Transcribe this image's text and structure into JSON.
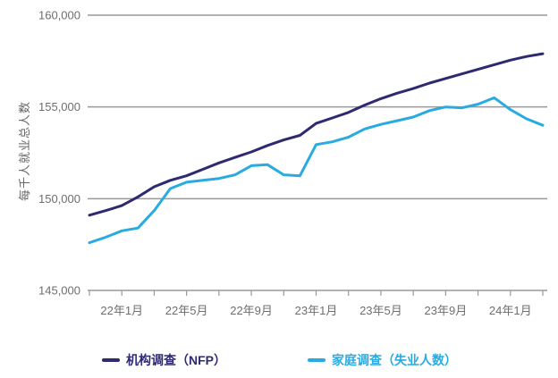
{
  "chart_data": {
    "type": "line",
    "title": "",
    "xlabel": "",
    "ylabel": "每千人就业总人数",
    "x": [
      "21年11月",
      "21年12月",
      "22年1月",
      "22年2月",
      "22年3月",
      "22年4月",
      "22年5月",
      "22年6月",
      "22年7月",
      "22年8月",
      "22年9月",
      "22年10月",
      "22年11月",
      "22年12月",
      "23年1月",
      "23年2月",
      "23年3月",
      "23年4月",
      "23年5月",
      "23年6月",
      "23年7月",
      "23年8月",
      "23年9月",
      "23年10月",
      "23年11月",
      "23年12月",
      "24年1月",
      "24年2月",
      "24年3月"
    ],
    "x_tick_labels": [
      "22年1月",
      "22年5月",
      "22年9月",
      "23年1月",
      "23年5月",
      "23年9月",
      "24年1月"
    ],
    "x_tick_label_indices": [
      2,
      6,
      10,
      14,
      18,
      22,
      26
    ],
    "x_minor_tick_step": 2,
    "ylim": [
      145000,
      160000
    ],
    "y_ticks": [
      145000,
      150000,
      155000,
      160000
    ],
    "y_tick_labels": [
      "145,000",
      "150,000",
      "155,000",
      "160,000"
    ],
    "gridlines_at": [
      150000,
      155000,
      160000
    ],
    "grid": true,
    "legend_position": "bottom",
    "series": [
      {
        "name": "机构调查（NFP）",
        "color": "#2e2a72",
        "values": [
          149100,
          149350,
          149620,
          150100,
          150650,
          151000,
          151250,
          151600,
          151950,
          152250,
          152550,
          152900,
          153200,
          153450,
          154100,
          154400,
          154700,
          155100,
          155450,
          155750,
          156000,
          156300,
          156550,
          156800,
          157050,
          157300,
          157550,
          157750,
          157900
        ]
      },
      {
        "name": "家庭调查（失业人数）",
        "color": "#29abe2",
        "values": [
          147600,
          147900,
          148250,
          148400,
          149350,
          150550,
          150900,
          151000,
          151100,
          151300,
          151800,
          151850,
          151300,
          151250,
          152950,
          153100,
          153350,
          153800,
          154050,
          154250,
          154450,
          154800,
          155000,
          154950,
          155150,
          155500,
          154850,
          154350,
          154000
        ]
      }
    ],
    "style": {
      "grid_color": "#999999",
      "axis_color": "#999999",
      "tick_label_color": "#6e6e6e",
      "line_width": 3
    }
  }
}
